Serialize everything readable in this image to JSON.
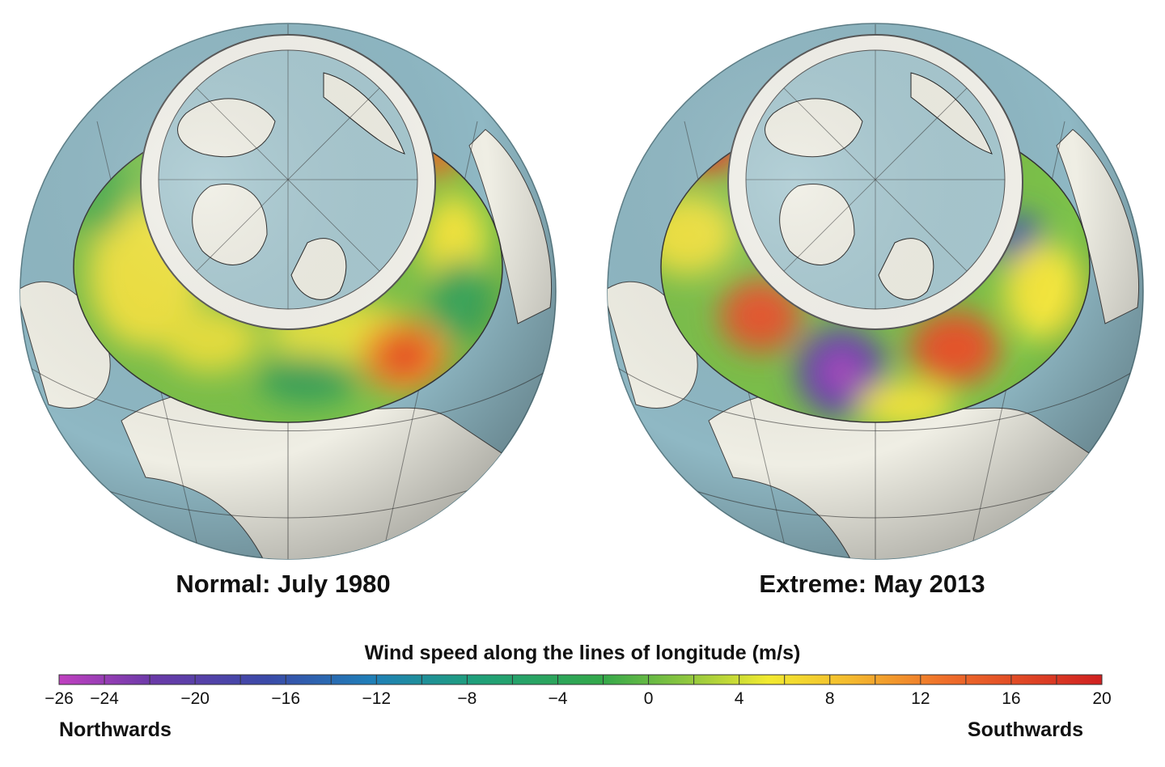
{
  "panels": [
    {
      "caption": "Normal: July 1980"
    },
    {
      "caption": "Extreme: May 2013"
    }
  ],
  "colorbar": {
    "title": "Wind speed along the lines of longitude (m/s)",
    "min": -26,
    "max": 20,
    "tick_labels": [
      "−26",
      "−24",
      "−20",
      "−16",
      "−12",
      "−8",
      "−4",
      "0",
      "4",
      "8",
      "12",
      "16",
      "20"
    ],
    "left_label": "Northwards",
    "right_label": "Southwards"
  },
  "colors": {
    "ocean": "#8fb8c4",
    "land": "#efeee4",
    "band_base": "#7cc24a",
    "pole_ocean": "#a8c9d1"
  }
}
